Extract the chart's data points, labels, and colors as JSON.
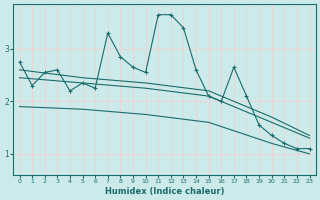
{
  "xlabel": "Humidex (Indice chaleur)",
  "background_color": "#cceaea",
  "line_color": "#1a6b6b",
  "grid_color": "#e8f8f8",
  "xlim": [
    -0.5,
    23.5
  ],
  "ylim": [
    0.6,
    3.85
  ],
  "yticks": [
    1,
    2,
    3
  ],
  "xticks": [
    0,
    1,
    2,
    3,
    4,
    5,
    6,
    7,
    8,
    9,
    10,
    11,
    12,
    13,
    14,
    15,
    16,
    17,
    18,
    19,
    20,
    21,
    22,
    23
  ],
  "series1_x": [
    0,
    1,
    2,
    3,
    4,
    5,
    6,
    7,
    8,
    9,
    10,
    11,
    12,
    13,
    14,
    15,
    16,
    17,
    18,
    19,
    20,
    21,
    22,
    23
  ],
  "series1_y": [
    2.75,
    2.3,
    2.55,
    2.6,
    2.2,
    2.35,
    2.25,
    3.3,
    2.85,
    2.65,
    2.55,
    3.65,
    3.65,
    3.4,
    2.6,
    2.1,
    2.0,
    2.65,
    2.1,
    1.55,
    1.35,
    1.2,
    1.1,
    1.1
  ],
  "series2_x": [
    0,
    5,
    10,
    15,
    20,
    23
  ],
  "series2_y": [
    2.6,
    2.45,
    2.35,
    2.2,
    1.7,
    1.35
  ],
  "series3_x": [
    0,
    5,
    10,
    15,
    20,
    23
  ],
  "series3_y": [
    2.45,
    2.35,
    2.25,
    2.1,
    1.6,
    1.3
  ],
  "series4_x": [
    0,
    5,
    10,
    15,
    20,
    23
  ],
  "series4_y": [
    1.9,
    1.85,
    1.75,
    1.6,
    1.2,
    1.0
  ]
}
